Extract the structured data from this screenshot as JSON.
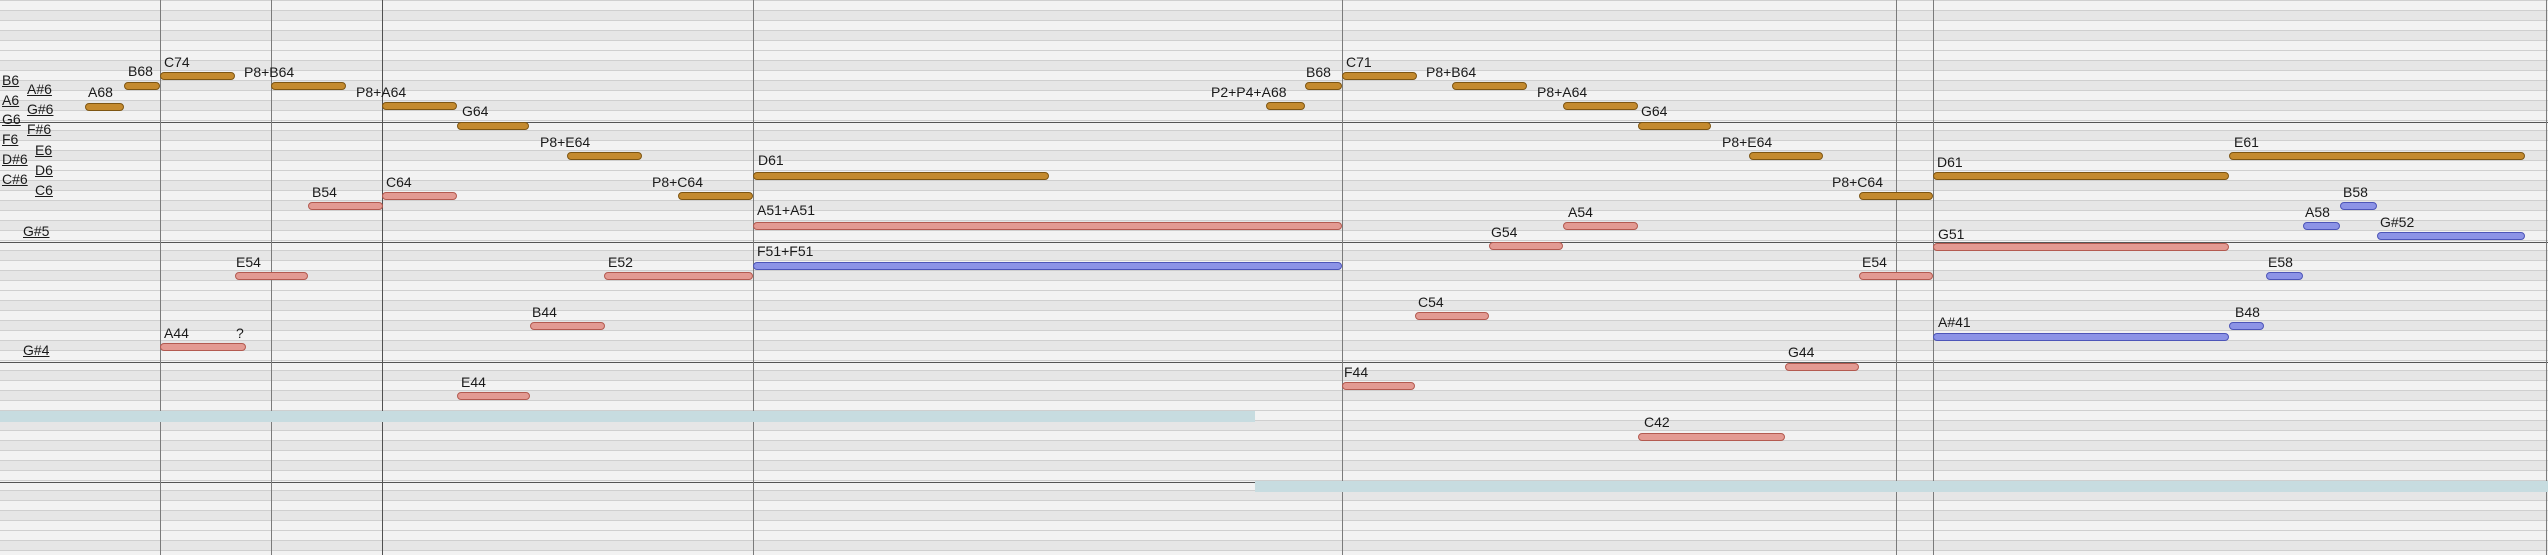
{
  "colors": {
    "background": "#ffffff",
    "lane_light": "#f2f2f2",
    "lane_dark": "#e6e6e6",
    "separator": "#cfcfcf",
    "octave_line": "#555555",
    "bar_line": "#7a7a7a",
    "band": "#c7dce0",
    "brown_note": "#c48a2e",
    "red_note": "#e39a92",
    "blue_note": "#8c93e6"
  },
  "key_labels": [
    "B6",
    "A6",
    "G6",
    "F6",
    "D#6",
    "C#6",
    "A#6",
    "G#6",
    "F#6",
    "E6",
    "D6",
    "C6",
    "G#5",
    "G#4"
  ],
  "notes": [
    {
      "label": "A68",
      "color": "brown"
    },
    {
      "label": "B68",
      "color": "brown"
    },
    {
      "label": "C74",
      "color": "brown"
    },
    {
      "label": "P8+B64",
      "color": "brown"
    },
    {
      "label": "P8+A64",
      "color": "brown"
    },
    {
      "label": "G64",
      "color": "brown"
    },
    {
      "label": "P8+E64",
      "color": "brown"
    },
    {
      "label": "P8+C64",
      "color": "brown"
    },
    {
      "label": "D61",
      "color": "brown"
    },
    {
      "label": "P2+P4+A68",
      "color": "brown"
    },
    {
      "label": "B68",
      "color": "brown"
    },
    {
      "label": "C71",
      "color": "brown"
    },
    {
      "label": "P8+B64",
      "color": "brown"
    },
    {
      "label": "P8+A64",
      "color": "brown"
    },
    {
      "label": "G64",
      "color": "brown"
    },
    {
      "label": "P8+E64",
      "color": "brown"
    },
    {
      "label": "P8+C64",
      "color": "brown"
    },
    {
      "label": "D61",
      "color": "brown"
    },
    {
      "label": "E61",
      "color": "brown"
    },
    {
      "label": "B54",
      "color": "red"
    },
    {
      "label": "C64",
      "color": "red"
    },
    {
      "label": "E54",
      "color": "red"
    },
    {
      "label": "E52",
      "color": "red"
    },
    {
      "label": "B44",
      "color": "red"
    },
    {
      "label": "A44",
      "color": "red"
    },
    {
      "label": "?",
      "color": "none"
    },
    {
      "label": "E44",
      "color": "red"
    },
    {
      "label": "A51+A51",
      "color": "red"
    },
    {
      "label": "G54",
      "color": "red"
    },
    {
      "label": "A54",
      "color": "red"
    },
    {
      "label": "C54",
      "color": "red"
    },
    {
      "label": "F44",
      "color": "red"
    },
    {
      "label": "G44",
      "color": "red"
    },
    {
      "label": "C42",
      "color": "red"
    },
    {
      "label": "E54",
      "color": "red"
    },
    {
      "label": "G51",
      "color": "red"
    },
    {
      "label": "F51+F51",
      "color": "blue"
    },
    {
      "label": "A#41",
      "color": "blue"
    },
    {
      "label": "B48",
      "color": "blue"
    },
    {
      "label": "A58",
      "color": "blue"
    },
    {
      "label": "B58",
      "color": "blue"
    },
    {
      "label": "G#52",
      "color": "blue"
    },
    {
      "label": "E58",
      "color": "blue"
    }
  ]
}
